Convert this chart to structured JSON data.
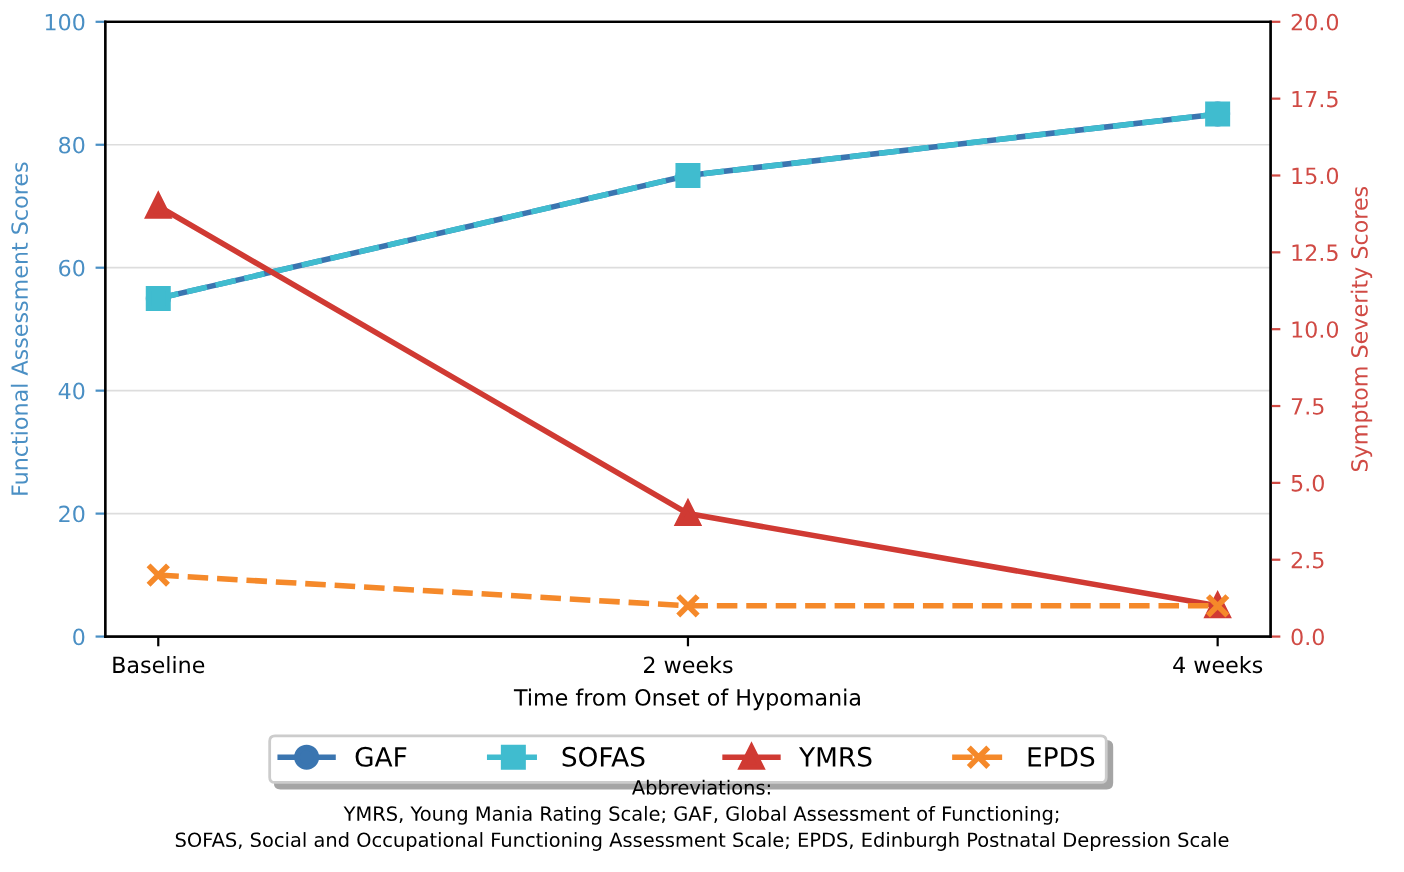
{
  "chart_data": {
    "type": "line",
    "xlabel": "Time from Onset of Hypomania",
    "ylabel": "Functional Assessment Scores",
    "y2label": "Symptom Severity Scores",
    "categories": [
      "Baseline",
      "2 weeks",
      "4 weeks"
    ],
    "series": [
      {
        "name": "GAF",
        "color": "#3a75b0",
        "values": [
          55,
          75,
          85
        ],
        "marker": "circle",
        "line_style": "solid"
      },
      {
        "name": "SOFAS",
        "color": "#40bccf",
        "values": [
          55,
          75,
          85
        ],
        "marker": "square",
        "line_style": "dashed"
      },
      {
        "name": "YMRS",
        "color": "#d03a33",
        "values": [
          14,
          4,
          1
        ],
        "marker": "triangle",
        "line_style": "solid",
        "axis": "y2"
      },
      {
        "name": "EPDS",
        "color": "#f5892a",
        "values": [
          2,
          1,
          1
        ],
        "marker": "cross",
        "line_style": "dashed",
        "axis": "y2"
      }
    ],
    "ylim": [
      0,
      100
    ],
    "yticks": [
      0,
      20,
      40,
      60,
      80,
      100
    ],
    "y2lim": [
      0,
      20
    ],
    "y2ticks": [
      {
        "value": 0,
        "label": "0.0"
      },
      2.5,
      {
        "value": 5,
        "label": "5.0"
      },
      7.5,
      {
        "value": 10,
        "label": "10.0"
      },
      12.5,
      {
        "value": 15,
        "label": "15.0"
      },
      17.5,
      {
        "value": 20,
        "label": "20.0"
      }
    ],
    "grid": "y",
    "legend": "bottom",
    "annotations": [
      "Abbreviations:",
      "YMRS, Young Mania Rating Scale; GAF, Global Assessment of Functioning;",
      "SOFAS, Social and Occupational Functioning Assessment Scale; EPDS, Edinburgh Postnatal Depression Scale"
    ]
  }
}
